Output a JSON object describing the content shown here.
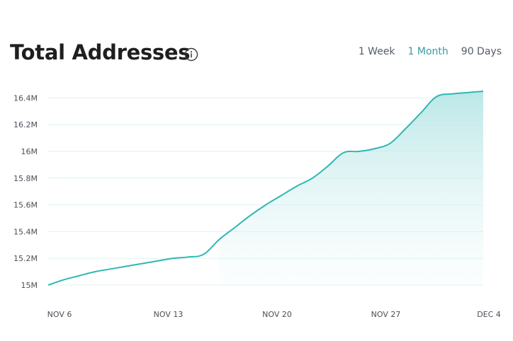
{
  "header": {
    "title": "Total Addresses",
    "info_icon": "info-circle-icon"
  },
  "range_tabs": [
    {
      "label": "1 Week",
      "active": false
    },
    {
      "label": "1 Month",
      "active": true
    },
    {
      "label": "90 Days",
      "active": false
    }
  ],
  "colors": {
    "line": "#2fb7b3",
    "fill_top": "#b8e6e6",
    "grid": "#dff1f2",
    "active_tab": "#3a9ba0"
  },
  "chart_data": {
    "type": "area",
    "title": "Total Addresses",
    "xlabel": "",
    "ylabel": "",
    "x_ticks": [
      "NOV 6",
      "NOV 13",
      "NOV 20",
      "NOV 27",
      "DEC 4"
    ],
    "y_ticks": [
      "15M",
      "15.2M",
      "15.4M",
      "15.6M",
      "15.8M",
      "16M",
      "16.2M",
      "16.4M"
    ],
    "ylim": [
      15.0,
      16.4
    ],
    "grid": true,
    "series": [
      {
        "name": "",
        "x": [
          "Nov 6",
          "Nov 7",
          "Nov 8",
          "Nov 9",
          "Nov 10",
          "Nov 11",
          "Nov 12",
          "Nov 13",
          "Nov 14",
          "Nov 15",
          "Nov 16",
          "Nov 17",
          "Nov 18",
          "Nov 19",
          "Nov 20",
          "Nov 21",
          "Nov 22",
          "Nov 23",
          "Nov 24",
          "Nov 25",
          "Nov 26",
          "Nov 27",
          "Nov 28",
          "Nov 29",
          "Nov 30",
          "Dec 1",
          "Dec 2",
          "Dec 3",
          "Dec 4"
        ],
        "values": [
          15.0,
          15.04,
          15.07,
          15.1,
          15.12,
          15.14,
          15.16,
          15.18,
          15.2,
          15.21,
          15.23,
          15.34,
          15.43,
          15.52,
          15.6,
          15.67,
          15.74,
          15.8,
          15.89,
          15.99,
          16.0,
          16.02,
          16.06,
          16.17,
          16.29,
          16.41,
          16.43,
          16.44,
          16.45
        ]
      }
    ]
  }
}
